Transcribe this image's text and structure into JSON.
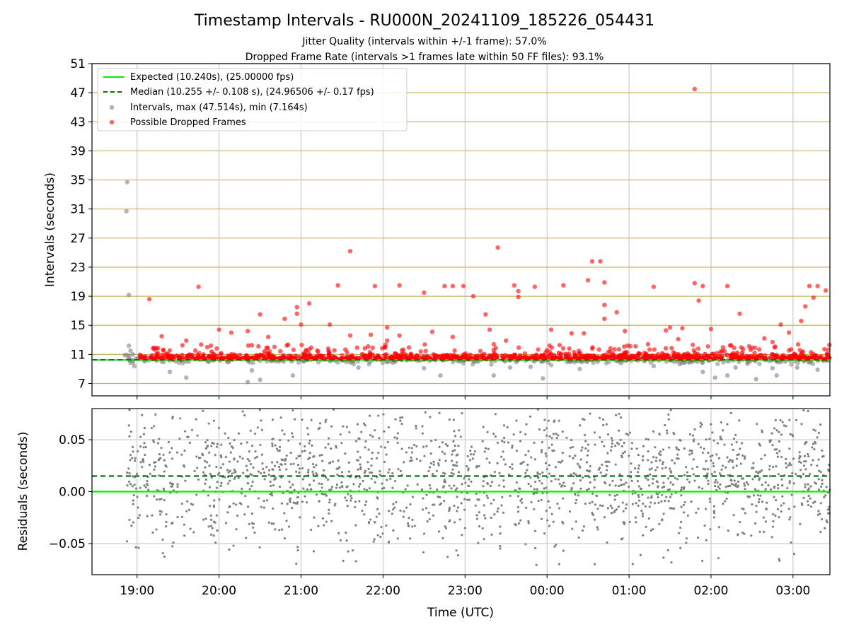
{
  "header": {
    "title": "Timestamp Intervals - RU000N_20241109_185226_054431",
    "subtitle_1": "Jitter Quality (intervals within +/-1 frame): 57.0%",
    "subtitle_2": "Dropped Frame Rate (intervals >1 frames late within 50 FF files): 93.1%"
  },
  "colors": {
    "expected": "#00ee00",
    "median": "#007700",
    "intervals": "#808080",
    "dropped": "#ff0000",
    "hgrid": "#c8b264",
    "vgrid": "#c0c0c0"
  },
  "chart_data": [
    {
      "type": "scatter",
      "ylabel": "Intervals (seconds)",
      "ylim": [
        5.3,
        51
      ],
      "yticks": [
        7,
        11,
        15,
        19,
        23,
        27,
        31,
        35,
        39,
        43,
        47,
        51
      ],
      "xlim_hours": [
        18.45,
        27.45
      ],
      "grid": true,
      "legend_placement": "upper-left",
      "legend": [
        {
          "label": "Expected (10.240s), (25.00000 fps)",
          "style": "solid-line",
          "color": "#00ee00"
        },
        {
          "label": "Median (10.255 +/- 0.108 s), (24.96506 +/- 0.17 fps)",
          "style": "dashed-line",
          "color": "#007700"
        },
        {
          "label": "Intervals, max (47.514s), min (7.164s)",
          "style": "marker",
          "color": "#808080"
        },
        {
          "label": "Possible Dropped Frames",
          "style": "marker",
          "color": "#ff0000"
        }
      ],
      "expected_interval": 10.24,
      "median_interval": 10.255,
      "baseline_time_range": [
        18.87,
        27.45
      ],
      "intervals_outliers": [
        [
          18.88,
          34.7
        ],
        [
          18.87,
          30.7
        ],
        [
          18.9,
          19.2
        ],
        [
          18.9,
          12.2
        ],
        [
          18.92,
          11.5
        ],
        [
          18.85,
          10.9
        ],
        [
          18.95,
          11.0
        ],
        [
          19.4,
          8.6
        ],
        [
          19.6,
          7.8
        ],
        [
          20.4,
          8.8
        ],
        [
          20.35,
          7.2
        ],
        [
          20.5,
          7.5
        ],
        [
          20.9,
          8.1
        ],
        [
          21.7,
          9.2
        ],
        [
          22.5,
          9.1
        ],
        [
          22.7,
          8.1
        ],
        [
          23.35,
          8.1
        ],
        [
          23.55,
          9.2
        ],
        [
          23.8,
          9.3
        ],
        [
          23.95,
          7.7
        ],
        [
          24.4,
          9.0
        ],
        [
          24.9,
          9.8
        ],
        [
          25.3,
          9.4
        ],
        [
          25.9,
          8.6
        ],
        [
          26.05,
          7.8
        ],
        [
          26.2,
          8.1
        ],
        [
          26.3,
          9.2
        ],
        [
          26.55,
          7.6
        ],
        [
          26.75,
          9.1
        ],
        [
          26.8,
          8.1
        ],
        [
          27.05,
          9.2
        ],
        [
          27.3,
          8.9
        ]
      ],
      "dropped_frames": [
        [
          19.15,
          18.6
        ],
        [
          19.75,
          20.3
        ],
        [
          19.3,
          13.5
        ],
        [
          19.6,
          12.9
        ],
        [
          19.9,
          12.2
        ],
        [
          20.0,
          14.4
        ],
        [
          20.15,
          14.0
        ],
        [
          20.35,
          14.2
        ],
        [
          20.5,
          16.5
        ],
        [
          20.6,
          13.4
        ],
        [
          20.8,
          15.9
        ],
        [
          20.95,
          17.5
        ],
        [
          20.95,
          16.6
        ],
        [
          21.0,
          15.1
        ],
        [
          21.1,
          18.0
        ],
        [
          21.1,
          11.7
        ],
        [
          21.35,
          15.1
        ],
        [
          21.45,
          20.5
        ],
        [
          21.6,
          25.2
        ],
        [
          21.6,
          13.6
        ],
        [
          21.85,
          13.7
        ],
        [
          21.9,
          20.4
        ],
        [
          22.05,
          14.7
        ],
        [
          22.05,
          12.9
        ],
        [
          22.2,
          20.5
        ],
        [
          22.2,
          13.6
        ],
        [
          22.5,
          19.5
        ],
        [
          22.6,
          14.1
        ],
        [
          22.75,
          20.4
        ],
        [
          22.85,
          20.4
        ],
        [
          22.85,
          13.4
        ],
        [
          22.98,
          20.4
        ],
        [
          23.1,
          19.0
        ],
        [
          23.25,
          16.5
        ],
        [
          23.3,
          14.4
        ],
        [
          23.4,
          25.7
        ],
        [
          23.5,
          12.9
        ],
        [
          23.6,
          20.5
        ],
        [
          23.65,
          19.7
        ],
        [
          23.65,
          18.9
        ],
        [
          23.85,
          20.3
        ],
        [
          24.05,
          14.4
        ],
        [
          24.2,
          20.5
        ],
        [
          24.3,
          13.9
        ],
        [
          24.45,
          13.9
        ],
        [
          24.5,
          21.2
        ],
        [
          24.55,
          23.8
        ],
        [
          24.65,
          23.8
        ],
        [
          24.7,
          20.9
        ],
        [
          24.7,
          17.8
        ],
        [
          24.7,
          15.9
        ],
        [
          24.85,
          16.8
        ],
        [
          24.95,
          14.2
        ],
        [
          25.3,
          20.3
        ],
        [
          25.45,
          14.3
        ],
        [
          25.5,
          14.7
        ],
        [
          25.65,
          14.6
        ],
        [
          25.8,
          20.8
        ],
        [
          25.85,
          18.4
        ],
        [
          25.9,
          20.4
        ],
        [
          25.8,
          47.5
        ],
        [
          26.0,
          14.5
        ],
        [
          26.2,
          20.4
        ],
        [
          26.35,
          16.6
        ],
        [
          26.5,
          11.9
        ],
        [
          26.65,
          13.2
        ],
        [
          26.85,
          15.1
        ],
        [
          26.95,
          14.0
        ],
        [
          27.1,
          15.6
        ],
        [
          27.15,
          17.6
        ],
        [
          27.2,
          20.4
        ],
        [
          27.25,
          18.8
        ],
        [
          27.3,
          20.4
        ],
        [
          27.4,
          19.8
        ],
        [
          26.75,
          12.7
        ],
        [
          25.6,
          13.1
        ],
        [
          24.0,
          11.6
        ]
      ]
    },
    {
      "type": "scatter",
      "xlabel": "Time (UTC)",
      "ylabel": "Residuals (seconds)",
      "ylim": [
        -0.08,
        0.08
      ],
      "ytick_labels": [
        "0.05",
        "0.00",
        "−0.05"
      ],
      "yticks": [
        0.05,
        0.0,
        -0.05
      ],
      "x_tick_labels": [
        "19:00",
        "20:00",
        "21:00",
        "22:00",
        "23:00",
        "00:00",
        "01:00",
        "02:00",
        "03:00"
      ],
      "x_ticks_hours": [
        19,
        20,
        21,
        22,
        23,
        24,
        25,
        26,
        27
      ],
      "expected_residual": 0.0,
      "median_residual": 0.015,
      "residual_time_range": [
        18.87,
        27.45
      ],
      "residual_spread_std": 0.032,
      "grid": true
    }
  ]
}
